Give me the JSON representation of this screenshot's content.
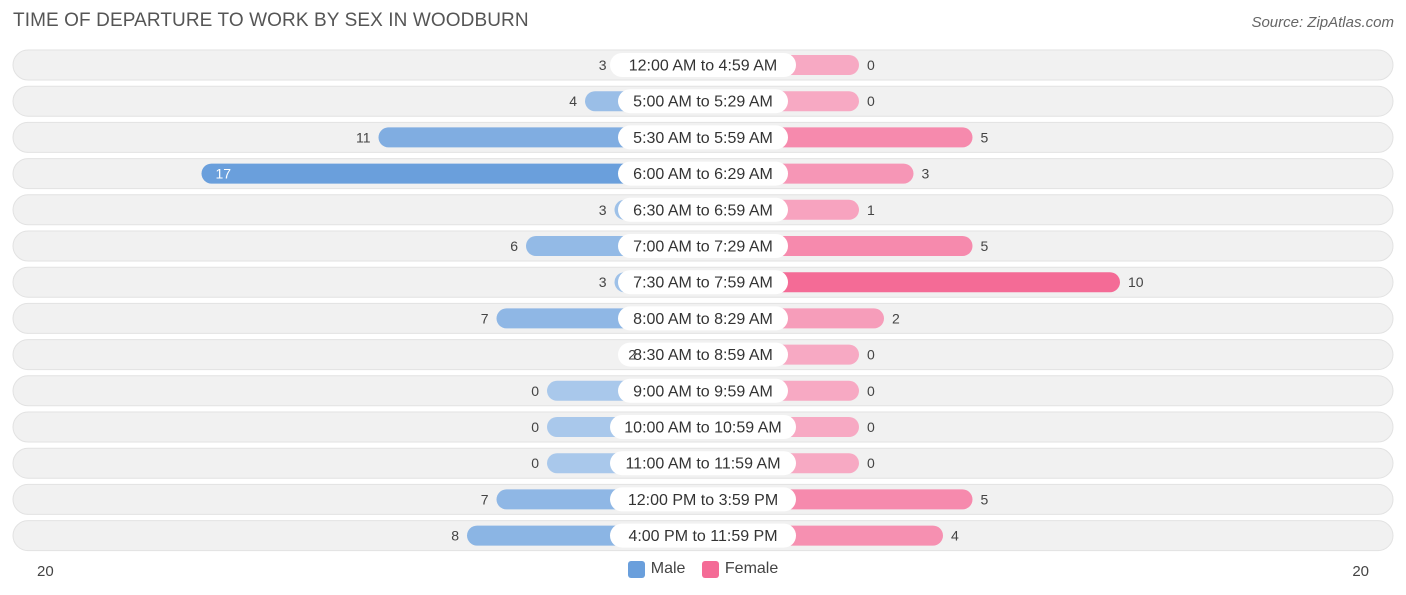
{
  "title": "TIME OF DEPARTURE TO WORK BY SEX IN WOODBURN",
  "source": "Source: ZipAtlas.com",
  "colors": {
    "male": "#6a9fdc",
    "male_light": "#a9c8eb",
    "female": "#f46b96",
    "female_light": "#f7a9c3",
    "row_bg": "#efefef"
  },
  "chart_data": {
    "type": "bar",
    "orientation": "horizontal-diverging",
    "categories": [
      "12:00 AM to 4:59 AM",
      "5:00 AM to 5:29 AM",
      "5:30 AM to 5:59 AM",
      "6:00 AM to 6:29 AM",
      "6:30 AM to 6:59 AM",
      "7:00 AM to 7:29 AM",
      "7:30 AM to 7:59 AM",
      "8:00 AM to 8:29 AM",
      "8:30 AM to 8:59 AM",
      "9:00 AM to 9:59 AM",
      "10:00 AM to 10:59 AM",
      "11:00 AM to 11:59 AM",
      "12:00 PM to 3:59 PM",
      "4:00 PM to 11:59 PM"
    ],
    "series": [
      {
        "name": "Male",
        "values": [
          3,
          4,
          11,
          17,
          3,
          6,
          3,
          7,
          2,
          0,
          0,
          0,
          7,
          8
        ]
      },
      {
        "name": "Female",
        "values": [
          0,
          0,
          5,
          3,
          1,
          5,
          10,
          2,
          0,
          0,
          0,
          0,
          5,
          4
        ]
      }
    ],
    "axis_max": 20,
    "axis_left_label": "20",
    "axis_right_label": "20",
    "legend_position": "bottom-center"
  }
}
